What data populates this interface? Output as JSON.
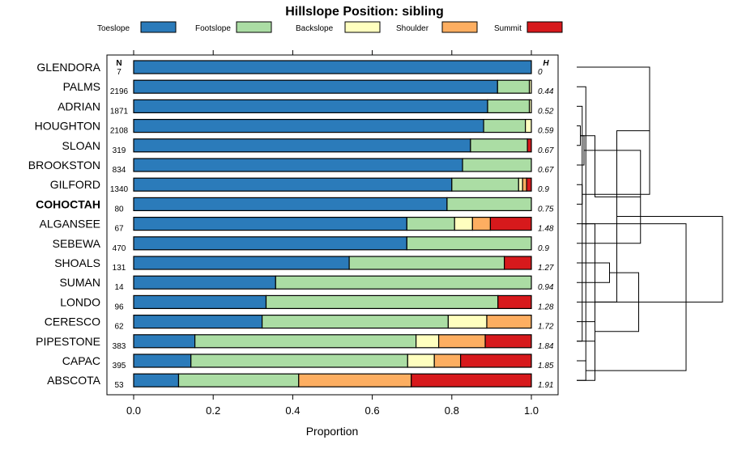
{
  "chart_data": {
    "type": "bar",
    "orientation": "horizontal",
    "stacked": true,
    "title": "Hillslope Position: sibling",
    "xlabel": "Proportion",
    "xlim": [
      0,
      1
    ],
    "xticks": [
      "0.0",
      "0.2",
      "0.4",
      "0.6",
      "0.8",
      "1.0"
    ],
    "n_header": "N",
    "h_header": "H",
    "legend": [
      {
        "name": "Toeslope",
        "color": "#2B7BBA"
      },
      {
        "name": "Footslope",
        "color": "#ABDDA4"
      },
      {
        "name": "Backslope",
        "color": "#FFFFBF"
      },
      {
        "name": "Shoulder",
        "color": "#FDAE61"
      },
      {
        "name": "Summit",
        "color": "#D7191C"
      }
    ],
    "rows": [
      {
        "name": "GLENDORA",
        "n": "7",
        "h": "0",
        "bold": false,
        "values": [
          1.0,
          0.0,
          0.0,
          0.0,
          0.0
        ]
      },
      {
        "name": "PALMS",
        "n": "2196",
        "h": "0.44",
        "bold": false,
        "values": [
          0.915,
          0.08,
          0.005,
          0.0,
          0.0
        ]
      },
      {
        "name": "ADRIAN",
        "n": "1871",
        "h": "0.52",
        "bold": false,
        "values": [
          0.89,
          0.105,
          0.005,
          0.0,
          0.0
        ]
      },
      {
        "name": "HOUGHTON",
        "n": "2108",
        "h": "0.59",
        "bold": false,
        "values": [
          0.88,
          0.105,
          0.015,
          0.0,
          0.0
        ]
      },
      {
        "name": "SLOAN",
        "n": "319",
        "h": "0.67",
        "bold": false,
        "values": [
          0.847,
          0.143,
          0.0,
          0.0,
          0.01
        ]
      },
      {
        "name": "BROOKSTON",
        "n": "834",
        "h": "0.67",
        "bold": false,
        "values": [
          0.827,
          0.173,
          0.0,
          0.0,
          0.0
        ]
      },
      {
        "name": "GILFORD",
        "n": "1340",
        "h": "0.9",
        "bold": false,
        "values": [
          0.8,
          0.168,
          0.01,
          0.01,
          0.012
        ]
      },
      {
        "name": "COHOCTAH",
        "n": "80",
        "h": "0.75",
        "bold": true,
        "values": [
          0.788,
          0.212,
          0.0,
          0.0,
          0.0
        ]
      },
      {
        "name": "ALGANSEE",
        "n": "67",
        "h": "1.48",
        "bold": false,
        "values": [
          0.687,
          0.12,
          0.045,
          0.045,
          0.103
        ]
      },
      {
        "name": "SEBEWA",
        "n": "470",
        "h": "0.9",
        "bold": false,
        "values": [
          0.687,
          0.313,
          0.0,
          0.0,
          0.0
        ]
      },
      {
        "name": "SHOALS",
        "n": "131",
        "h": "1.27",
        "bold": false,
        "values": [
          0.542,
          0.39,
          0.0,
          0.0,
          0.068
        ]
      },
      {
        "name": "SUMAN",
        "n": "14",
        "h": "0.94",
        "bold": false,
        "values": [
          0.357,
          0.643,
          0.0,
          0.0,
          0.0
        ]
      },
      {
        "name": "LONDO",
        "n": "96",
        "h": "1.28",
        "bold": false,
        "values": [
          0.333,
          0.583,
          0.0,
          0.0,
          0.084
        ]
      },
      {
        "name": "CERESCO",
        "n": "62",
        "h": "1.72",
        "bold": false,
        "values": [
          0.323,
          0.468,
          0.097,
          0.112,
          0.0
        ]
      },
      {
        "name": "PIPESTONE",
        "n": "383",
        "h": "1.84",
        "bold": false,
        "values": [
          0.154,
          0.556,
          0.057,
          0.117,
          0.116
        ]
      },
      {
        "name": "CAPAC",
        "n": "395",
        "h": "1.85",
        "bold": false,
        "values": [
          0.144,
          0.545,
          0.067,
          0.066,
          0.178
        ]
      },
      {
        "name": "ABSCOTA",
        "n": "53",
        "h": "1.91",
        "bold": false,
        "values": [
          0.113,
          0.302,
          0.0,
          0.283,
          0.302
        ]
      }
    ],
    "dendrogram": {
      "merges": [
        [
          3,
          4,
          0.02
        ],
        [
          2,
          14,
          0.03
        ],
        [
          1,
          15,
          0.05
        ],
        [
          6,
          7,
          0.03
        ],
        [
          5,
          17,
          0.04
        ],
        [
          8,
          18,
          0.06
        ],
        [
          16,
          19,
          0.1
        ],
        [
          0,
          20,
          0.4
        ],
        [
          10,
          11,
          0.18
        ],
        [
          9,
          21,
          0.35
        ],
        [
          13,
          14,
          0.1
        ],
        [
          24,
          12,
          0.22
        ],
        [
          15,
          16,
          0.05
        ],
        [
          17,
          26,
          0.1
        ],
        [
          25,
          27,
          0.34
        ],
        [
          23,
          28,
          0.8
        ],
        [
          29,
          18,
          0.6
        ]
      ]
    }
  }
}
